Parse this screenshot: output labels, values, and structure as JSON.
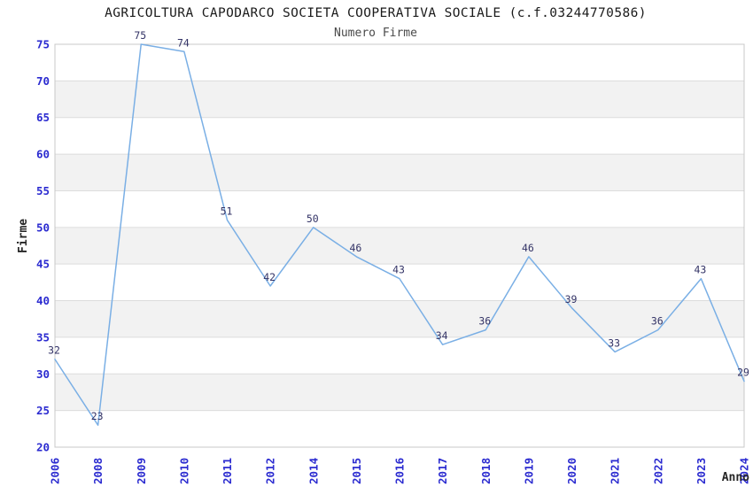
{
  "header": {
    "title": "AGRICOLTURA CAPODARCO SOCIETA COOPERATIVA SOCIALE (c.f.03244770586)",
    "subtitle": "Numero Firme"
  },
  "chart_data": {
    "type": "line",
    "title": "AGRICOLTURA CAPODARCO SOCIETA COOPERATIVA SOCIALE (c.f.03244770586)",
    "subtitle": "Numero Firme",
    "xlabel": "Anno",
    "ylabel": "Firme",
    "categories": [
      "2006",
      "2008",
      "2009",
      "2010",
      "2011",
      "2012",
      "2014",
      "2015",
      "2016",
      "2017",
      "2018",
      "2019",
      "2020",
      "2021",
      "2022",
      "2023",
      "2024"
    ],
    "values": [
      32,
      23,
      75,
      74,
      51,
      42,
      50,
      46,
      43,
      34,
      36,
      46,
      39,
      33,
      36,
      43,
      29
    ],
    "ylim": [
      20,
      75
    ],
    "ytick_step": 5,
    "grid": "horizontal-alternating-bands",
    "legend": "none",
    "markers": "none",
    "data_labels": "above-points",
    "colors": {
      "line": "#7aafe5",
      "tick_label": "#2b2bd0",
      "data_label": "#333366",
      "band_gray": "#f2f2f2",
      "band_white": "#ffffff",
      "gridline": "#dcdcdc",
      "plot_border": "#c8c8c8",
      "title": "#1a1a1a",
      "subtitle": "#4a4a4a",
      "axis_title": "#262626"
    }
  }
}
